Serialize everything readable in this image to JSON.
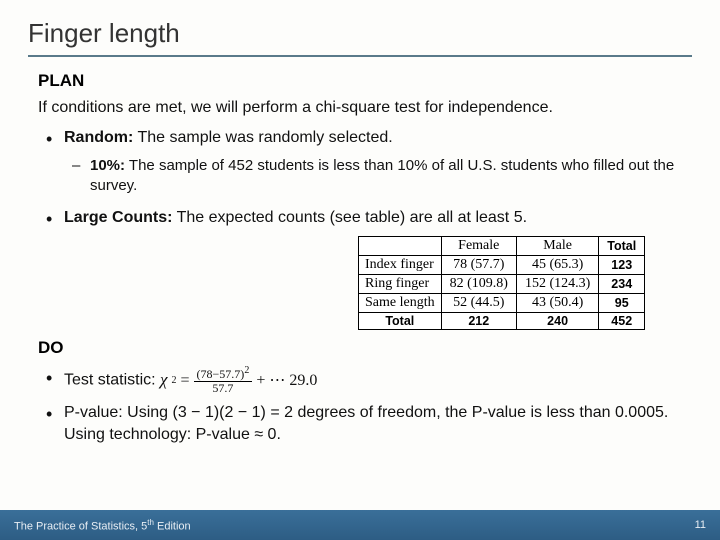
{
  "title": "Finger length",
  "plan": {
    "heading": "PLAN",
    "intro": "If conditions are met, we will perform a chi-square test for independence.",
    "random_label": "Random:",
    "random_text": " The sample was randomly selected.",
    "tenpct_label": "10%:",
    "tenpct_text": " The sample of 452 students is less than 10% of all U.S. students who filled out the survey.",
    "large_label": "Large Counts:",
    "large_text": " The expected counts (see table) are all at least 5."
  },
  "table": {
    "col_female": "Female",
    "col_male": "Male",
    "col_total": "Total",
    "rows": [
      {
        "label": "Index finger",
        "female": "78 (57.7)",
        "male": "45 (65.3)",
        "total": "123"
      },
      {
        "label": "Ring finger",
        "female": "82 (109.8)",
        "male": "152 (124.3)",
        "total": "234"
      },
      {
        "label": "Same length",
        "female": "52 (44.5)",
        "male": "43 (50.4)",
        "total": "95"
      }
    ],
    "total_label": "Total",
    "total_female": "212",
    "total_male": "240",
    "total_all": "452"
  },
  "do": {
    "heading": "DO",
    "test_label": "Test statistic: ",
    "chi": "χ",
    "eq": " = ",
    "frac_num": "(78−57.7)",
    "frac_num_sup": "2",
    "frac_den": "57.7",
    "plusdots": " + ⋯ 29.0",
    "pvalue": "P-value: Using (3 − 1)(2 − 1) = 2 degrees of freedom, the P-value is less than 0.0005. Using technology: P-value ≈ 0."
  },
  "footer": {
    "left_a": "The Practice of Statistics, 5",
    "left_sup": "th",
    "left_b": " Edition",
    "page": "11"
  }
}
